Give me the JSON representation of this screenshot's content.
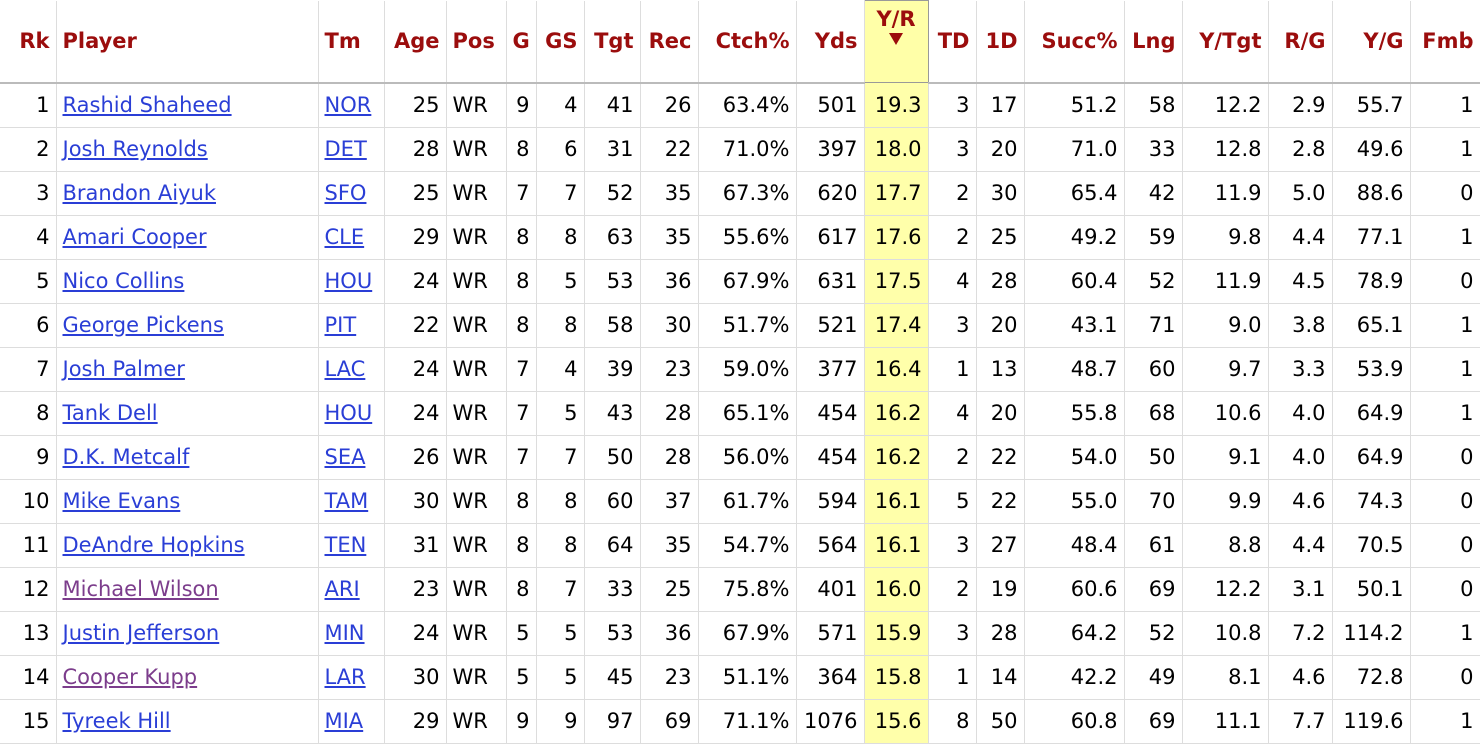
{
  "table": {
    "columns": [
      "Rk",
      "Player",
      "Tm",
      "Age",
      "Pos",
      "G",
      "GS",
      "Tgt",
      "Rec",
      "Ctch%",
      "Yds",
      "Y/R",
      "TD",
      "1D",
      "Succ%",
      "Lng",
      "Y/Tgt",
      "R/G",
      "Y/G",
      "Fmb"
    ],
    "rows": [
      [
        "1",
        "Rashid Shaheed",
        "NOR",
        "25",
        "WR",
        "9",
        "4",
        "41",
        "26",
        "63.4%",
        "501",
        "19.3",
        "3",
        "17",
        "51.2",
        "58",
        "12.2",
        "2.9",
        "55.7",
        "1"
      ],
      [
        "2",
        "Josh Reynolds",
        "DET",
        "28",
        "WR",
        "8",
        "6",
        "31",
        "22",
        "71.0%",
        "397",
        "18.0",
        "3",
        "20",
        "71.0",
        "33",
        "12.8",
        "2.8",
        "49.6",
        "1"
      ],
      [
        "3",
        "Brandon Aiyuk",
        "SFO",
        "25",
        "WR",
        "7",
        "7",
        "52",
        "35",
        "67.3%",
        "620",
        "17.7",
        "2",
        "30",
        "65.4",
        "42",
        "11.9",
        "5.0",
        "88.6",
        "0"
      ],
      [
        "4",
        "Amari Cooper",
        "CLE",
        "29",
        "WR",
        "8",
        "8",
        "63",
        "35",
        "55.6%",
        "617",
        "17.6",
        "2",
        "25",
        "49.2",
        "59",
        "9.8",
        "4.4",
        "77.1",
        "1"
      ],
      [
        "5",
        "Nico Collins",
        "HOU",
        "24",
        "WR",
        "8",
        "5",
        "53",
        "36",
        "67.9%",
        "631",
        "17.5",
        "4",
        "28",
        "60.4",
        "52",
        "11.9",
        "4.5",
        "78.9",
        "0"
      ],
      [
        "6",
        "George Pickens",
        "PIT",
        "22",
        "WR",
        "8",
        "8",
        "58",
        "30",
        "51.7%",
        "521",
        "17.4",
        "3",
        "20",
        "43.1",
        "71",
        "9.0",
        "3.8",
        "65.1",
        "1"
      ],
      [
        "7",
        "Josh Palmer",
        "LAC",
        "24",
        "WR",
        "7",
        "4",
        "39",
        "23",
        "59.0%",
        "377",
        "16.4",
        "1",
        "13",
        "48.7",
        "60",
        "9.7",
        "3.3",
        "53.9",
        "1"
      ],
      [
        "8",
        "Tank Dell",
        "HOU",
        "24",
        "WR",
        "7",
        "5",
        "43",
        "28",
        "65.1%",
        "454",
        "16.2",
        "4",
        "20",
        "55.8",
        "68",
        "10.6",
        "4.0",
        "64.9",
        "1"
      ],
      [
        "9",
        "D.K. Metcalf",
        "SEA",
        "26",
        "WR",
        "7",
        "7",
        "50",
        "28",
        "56.0%",
        "454",
        "16.2",
        "2",
        "22",
        "54.0",
        "50",
        "9.1",
        "4.0",
        "64.9",
        "0"
      ],
      [
        "10",
        "Mike Evans",
        "TAM",
        "30",
        "WR",
        "8",
        "8",
        "60",
        "37",
        "61.7%",
        "594",
        "16.1",
        "5",
        "22",
        "55.0",
        "70",
        "9.9",
        "4.6",
        "74.3",
        "0"
      ],
      [
        "11",
        "DeAndre Hopkins",
        "TEN",
        "31",
        "WR",
        "8",
        "8",
        "64",
        "35",
        "54.7%",
        "564",
        "16.1",
        "3",
        "27",
        "48.4",
        "61",
        "8.8",
        "4.4",
        "70.5",
        "0"
      ],
      [
        "12",
        "Michael Wilson",
        "ARI",
        "23",
        "WR",
        "8",
        "7",
        "33",
        "25",
        "75.8%",
        "401",
        "16.0",
        "2",
        "19",
        "60.6",
        "69",
        "12.2",
        "3.1",
        "50.1",
        "0"
      ],
      [
        "13",
        "Justin Jefferson",
        "MIN",
        "24",
        "WR",
        "5",
        "5",
        "53",
        "36",
        "67.9%",
        "571",
        "15.9",
        "3",
        "28",
        "64.2",
        "52",
        "10.8",
        "7.2",
        "114.2",
        "1"
      ],
      [
        "14",
        "Cooper Kupp",
        "LAR",
        "30",
        "WR",
        "5",
        "5",
        "45",
        "23",
        "51.1%",
        "364",
        "15.8",
        "1",
        "14",
        "42.2",
        "49",
        "8.1",
        "4.6",
        "72.8",
        "0"
      ],
      [
        "15",
        "Tyreek Hill",
        "MIA",
        "29",
        "WR",
        "9",
        "9",
        "97",
        "69",
        "71.1%",
        "1076",
        "15.6",
        "8",
        "50",
        "60.8",
        "69",
        "11.1",
        "7.7",
        "119.6",
        "1"
      ]
    ]
  }
}
